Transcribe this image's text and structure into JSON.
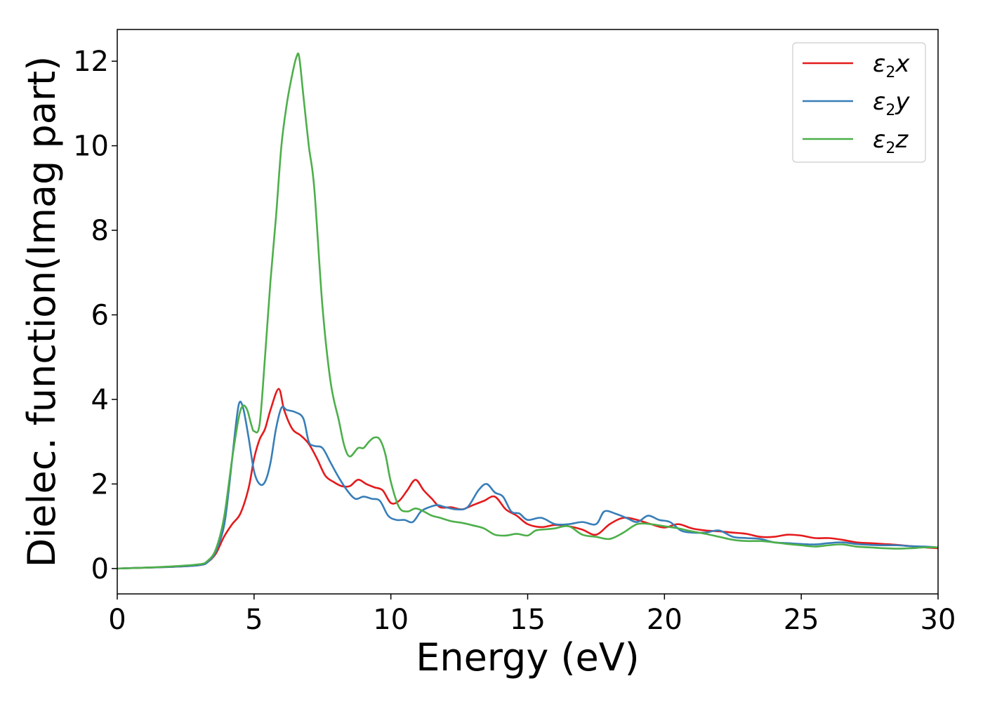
{
  "chart_data": {
    "type": "line",
    "title": "",
    "xlabel": "Energy (eV)",
    "ylabel": "Dielec. function(Imag part)",
    "xlim": [
      0,
      30
    ],
    "ylim": [
      -0.6,
      12.75
    ],
    "xticks": [
      0,
      5,
      10,
      15,
      20,
      25,
      30
    ],
    "yticks": [
      0,
      2,
      4,
      6,
      8,
      10,
      12
    ],
    "xtick_labels": [
      "0",
      "5",
      "10",
      "15",
      "20",
      "25",
      "30"
    ],
    "ytick_labels": [
      "0",
      "2",
      "4",
      "6",
      "8",
      "10",
      "12"
    ],
    "grid": false,
    "legend_position": "top-right",
    "series": [
      {
        "name": "ε2x",
        "legend_main": "ε",
        "legend_sub": "2",
        "legend_suffix": "x",
        "color": "#e41a1c",
        "x": [
          0,
          1,
          2,
          3,
          3.3,
          3.6,
          3.9,
          4.2,
          4.5,
          4.8,
          5.0,
          5.2,
          5.4,
          5.6,
          5.9,
          6.1,
          6.4,
          6.7,
          7.0,
          7.3,
          7.6,
          7.9,
          8.2,
          8.5,
          8.8,
          9.1,
          9.4,
          9.7,
          10.0,
          10.3,
          10.6,
          10.9,
          11.2,
          11.5,
          11.8,
          12.2,
          12.6,
          13.0,
          13.4,
          13.8,
          14.2,
          14.6,
          15.0,
          15.5,
          16.0,
          16.5,
          17.0,
          17.5,
          18.0,
          18.5,
          19.0,
          19.5,
          20.0,
          20.5,
          21.0,
          21.5,
          22.0,
          22.5,
          23.0,
          23.5,
          24.0,
          24.5,
          25.0,
          25.5,
          26.0,
          26.5,
          27.0,
          27.5,
          28.0,
          28.5,
          29.0,
          29.5,
          30.0
        ],
        "y": [
          0.0,
          0.02,
          0.04,
          0.08,
          0.15,
          0.35,
          0.75,
          1.05,
          1.3,
          1.9,
          2.6,
          3.05,
          3.3,
          3.75,
          4.25,
          3.75,
          3.3,
          3.15,
          2.95,
          2.6,
          2.2,
          2.05,
          1.95,
          1.95,
          2.1,
          2.0,
          1.92,
          1.85,
          1.55,
          1.6,
          1.85,
          2.1,
          1.85,
          1.65,
          1.45,
          1.45,
          1.4,
          1.5,
          1.6,
          1.7,
          1.4,
          1.25,
          1.05,
          0.98,
          1.03,
          1.0,
          0.92,
          0.8,
          1.05,
          1.2,
          1.15,
          1.05,
          0.97,
          1.05,
          0.95,
          0.9,
          0.88,
          0.85,
          0.82,
          0.75,
          0.75,
          0.8,
          0.78,
          0.72,
          0.72,
          0.68,
          0.62,
          0.6,
          0.58,
          0.56,
          0.53,
          0.5,
          0.48
        ]
      },
      {
        "name": "ε2y",
        "legend_main": "ε",
        "legend_sub": "2",
        "legend_suffix": "y",
        "color": "#377eb8",
        "x": [
          0,
          1,
          2,
          3,
          3.3,
          3.6,
          3.9,
          4.1,
          4.3,
          4.45,
          4.6,
          4.8,
          5.0,
          5.2,
          5.4,
          5.6,
          5.8,
          6.0,
          6.2,
          6.5,
          6.8,
          7.0,
          7.2,
          7.5,
          7.8,
          8.1,
          8.4,
          8.7,
          9.0,
          9.3,
          9.6,
          9.9,
          10.2,
          10.5,
          10.8,
          11.1,
          11.4,
          11.7,
          12.0,
          12.4,
          12.8,
          13.2,
          13.5,
          13.8,
          14.1,
          14.4,
          14.7,
          15.0,
          15.5,
          16.0,
          16.5,
          17.0,
          17.5,
          17.8,
          18.2,
          18.6,
          19.0,
          19.4,
          19.8,
          20.2,
          20.6,
          21.0,
          21.5,
          22.0,
          22.5,
          23.0,
          23.5,
          24.0,
          24.5,
          25.0,
          25.5,
          26.0,
          26.5,
          27.0,
          27.5,
          28.0,
          28.5,
          29.0,
          29.5,
          30.0
        ],
        "y": [
          0.0,
          0.02,
          0.04,
          0.08,
          0.15,
          0.4,
          1.0,
          2.0,
          3.2,
          3.9,
          3.8,
          3.1,
          2.3,
          2.0,
          2.05,
          2.5,
          3.3,
          3.8,
          3.75,
          3.7,
          3.55,
          3.0,
          2.9,
          2.85,
          2.5,
          2.15,
          1.85,
          1.65,
          1.7,
          1.65,
          1.6,
          1.25,
          1.15,
          1.15,
          1.1,
          1.35,
          1.45,
          1.5,
          1.45,
          1.4,
          1.45,
          1.85,
          2.0,
          1.8,
          1.7,
          1.35,
          1.3,
          1.15,
          1.2,
          1.05,
          1.05,
          1.1,
          1.05,
          1.35,
          1.3,
          1.2,
          1.1,
          1.25,
          1.15,
          1.1,
          0.9,
          0.85,
          0.85,
          0.9,
          0.75,
          0.72,
          0.7,
          0.62,
          0.6,
          0.58,
          0.57,
          0.6,
          0.62,
          0.58,
          0.56,
          0.55,
          0.55,
          0.53,
          0.52,
          0.5
        ]
      },
      {
        "name": "ε2z",
        "legend_main": "ε",
        "legend_sub": "2",
        "legend_suffix": "z",
        "color": "#4daf4a",
        "x": [
          0,
          1,
          2,
          3,
          3.3,
          3.6,
          3.9,
          4.2,
          4.45,
          4.6,
          4.75,
          4.9,
          5.0,
          5.2,
          5.4,
          5.6,
          5.8,
          6.0,
          6.2,
          6.4,
          6.55,
          6.65,
          6.8,
          7.0,
          7.2,
          7.5,
          7.8,
          8.1,
          8.3,
          8.5,
          8.8,
          9.0,
          9.2,
          9.4,
          9.6,
          9.8,
          10.0,
          10.3,
          10.6,
          10.9,
          11.2,
          11.5,
          11.8,
          12.2,
          12.6,
          13.0,
          13.4,
          13.8,
          14.2,
          14.6,
          15.0,
          15.3,
          15.7,
          16.0,
          16.5,
          17.0,
          17.5,
          18.0,
          18.5,
          19.0,
          19.5,
          20.0,
          20.5,
          21.0,
          21.5,
          22.0,
          22.5,
          23.0,
          23.5,
          24.0,
          24.5,
          25.0,
          25.5,
          26.0,
          26.5,
          27.0,
          27.5,
          28.0,
          28.5,
          29.0,
          29.5,
          30.0
        ],
        "y": [
          0.0,
          0.02,
          0.05,
          0.1,
          0.18,
          0.45,
          1.2,
          2.6,
          3.6,
          3.85,
          3.75,
          3.4,
          3.25,
          3.4,
          5.0,
          6.8,
          8.3,
          10.0,
          11.0,
          11.7,
          12.1,
          12.1,
          11.2,
          10.0,
          9.0,
          6.2,
          4.4,
          3.5,
          2.9,
          2.65,
          2.85,
          2.85,
          3.0,
          3.1,
          3.05,
          2.7,
          2.05,
          1.45,
          1.35,
          1.42,
          1.35,
          1.25,
          1.2,
          1.12,
          1.08,
          1.02,
          0.95,
          0.8,
          0.78,
          0.82,
          0.78,
          0.9,
          0.93,
          0.95,
          1.0,
          0.8,
          0.75,
          0.7,
          0.85,
          1.05,
          1.05,
          1.0,
          0.95,
          0.88,
          0.82,
          0.75,
          0.68,
          0.65,
          0.65,
          0.62,
          0.58,
          0.55,
          0.52,
          0.55,
          0.57,
          0.52,
          0.5,
          0.48,
          0.47,
          0.48,
          0.5,
          0.5
        ]
      }
    ]
  }
}
